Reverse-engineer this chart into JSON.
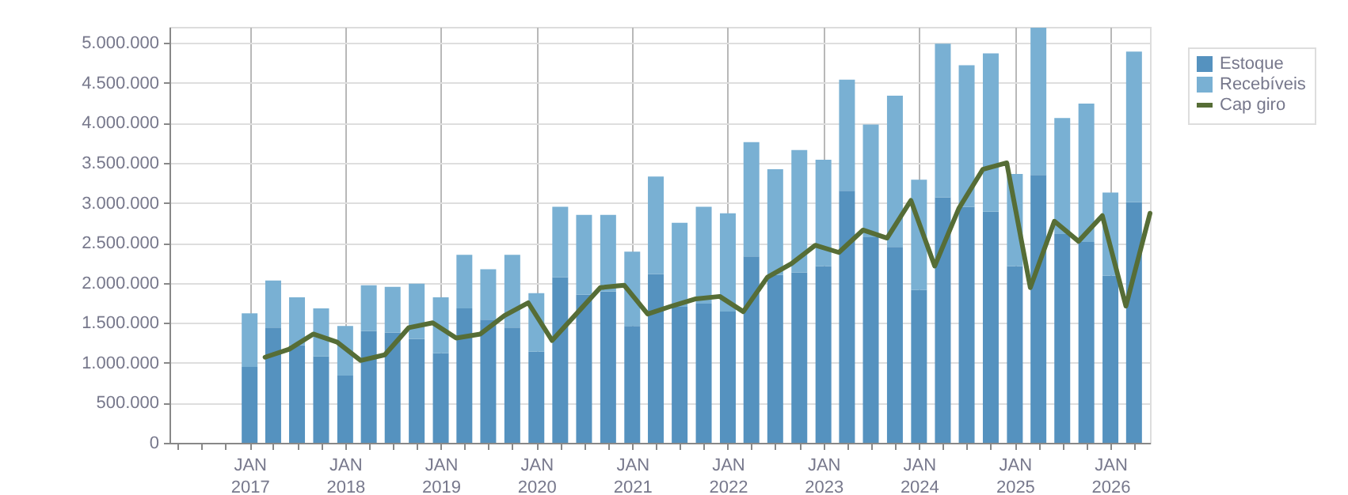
{
  "chart_data": {
    "type": "bar",
    "stacked": true,
    "x": [
      "2017-01",
      "2017-04",
      "2017-07",
      "2017-10",
      "2018-01",
      "2018-04",
      "2018-07",
      "2018-10",
      "2019-01",
      "2019-04",
      "2019-07",
      "2019-10",
      "2020-01",
      "2020-04",
      "2020-07",
      "2020-10",
      "2021-01",
      "2021-04",
      "2021-07",
      "2021-10",
      "2022-01",
      "2022-04",
      "2022-07",
      "2022-10",
      "2023-01",
      "2023-04",
      "2023-07",
      "2023-10",
      "2024-01",
      "2024-04",
      "2024-07",
      "2024-10",
      "2025-01",
      "2025-04",
      "2025-07",
      "2025-10",
      "2026-01",
      "2026-04"
    ],
    "series": [
      {
        "name": "Estoque",
        "color": "#5592bf",
        "values": [
          950000,
          1440000,
          1220000,
          1080000,
          840000,
          1400000,
          1380000,
          1300000,
          1120000,
          1680000,
          1540000,
          1440000,
          1140000,
          2070000,
          1850000,
          1890000,
          1460000,
          2110000,
          1700000,
          1740000,
          1640000,
          2330000,
          2100000,
          2130000,
          2210000,
          3150000,
          2570000,
          2450000,
          1910000,
          3070000,
          2950000,
          2890000,
          2210000,
          3350000,
          2610000,
          2510000,
          2090000,
          3010000
        ]
      },
      {
        "name": "Recebíveis",
        "color": "#79b0d3",
        "values": [
          670000,
          590000,
          600000,
          600000,
          620000,
          570000,
          570000,
          690000,
          700000,
          670000,
          630000,
          910000,
          730000,
          880000,
          1000000,
          960000,
          930000,
          1220000,
          1050000,
          1210000,
          1230000,
          1430000,
          1320000,
          1530000,
          1330000,
          1390000,
          1410000,
          1890000,
          1380000,
          1920000,
          1770000,
          1980000,
          1150000,
          1840000,
          1450000,
          1730000,
          1040000,
          1880000
        ]
      },
      {
        "name": "Cap giro",
        "type": "line",
        "color": "#566d36",
        "x": [
          "2017-03",
          "2017-06",
          "2017-09",
          "2017-12",
          "2018-03",
          "2018-06",
          "2018-09",
          "2018-12",
          "2019-03",
          "2019-06",
          "2019-09",
          "2019-12",
          "2020-03",
          "2020-06",
          "2020-09",
          "2020-12",
          "2021-03",
          "2021-06",
          "2021-09",
          "2021-12",
          "2022-03",
          "2022-06",
          "2022-09",
          "2022-12",
          "2023-03",
          "2023-06",
          "2023-09",
          "2023-12",
          "2024-03",
          "2024-06",
          "2024-09",
          "2024-12",
          "2025-03",
          "2025-06",
          "2025-09",
          "2025-12",
          "2026-03",
          "2026-06"
        ],
        "values": [
          1070000,
          1170000,
          1360000,
          1260000,
          1030000,
          1100000,
          1440000,
          1500000,
          1310000,
          1360000,
          1590000,
          1750000,
          1280000,
          1610000,
          1940000,
          1970000,
          1610000,
          1710000,
          1800000,
          1830000,
          1640000,
          2070000,
          2240000,
          2470000,
          2380000,
          2660000,
          2560000,
          3030000,
          2210000,
          2930000,
          3420000,
          3500000,
          1940000,
          2770000,
          2520000,
          2840000,
          1710000,
          2870000
        ]
      }
    ],
    "xlim": [
      "2016-03",
      "2026-06"
    ],
    "xticks": [
      {
        "value": "2016-04",
        "label": null
      },
      {
        "value": "2016-07",
        "label": null
      },
      {
        "value": "2016-10",
        "label": null
      },
      {
        "value": "2017-01",
        "label": "JAN 2017"
      },
      {
        "value": "2017-04",
        "label": null
      },
      {
        "value": "2017-07",
        "label": null
      },
      {
        "value": "2017-10",
        "label": null
      },
      {
        "value": "2018-01",
        "label": "JAN 2018"
      },
      {
        "value": "2018-04",
        "label": null
      },
      {
        "value": "2018-07",
        "label": null
      },
      {
        "value": "2018-10",
        "label": null
      },
      {
        "value": "2019-01",
        "label": "JAN 2019"
      },
      {
        "value": "2019-04",
        "label": null
      },
      {
        "value": "2019-07",
        "label": null
      },
      {
        "value": "2019-10",
        "label": null
      },
      {
        "value": "2020-01",
        "label": "JAN 2020"
      },
      {
        "value": "2020-04",
        "label": null
      },
      {
        "value": "2020-07",
        "label": null
      },
      {
        "value": "2020-10",
        "label": null
      },
      {
        "value": "2021-01",
        "label": "JAN 2021"
      },
      {
        "value": "2021-04",
        "label": null
      },
      {
        "value": "2021-07",
        "label": null
      },
      {
        "value": "2021-10",
        "label": null
      },
      {
        "value": "2022-01",
        "label": "JAN 2022"
      },
      {
        "value": "2022-04",
        "label": null
      },
      {
        "value": "2022-07",
        "label": null
      },
      {
        "value": "2022-10",
        "label": null
      },
      {
        "value": "2023-01",
        "label": "JAN 2023"
      },
      {
        "value": "2023-04",
        "label": null
      },
      {
        "value": "2023-07",
        "label": null
      },
      {
        "value": "2023-10",
        "label": null
      },
      {
        "value": "2024-01",
        "label": "JAN 2024"
      },
      {
        "value": "2024-04",
        "label": null
      },
      {
        "value": "2024-07",
        "label": null
      },
      {
        "value": "2024-10",
        "label": null
      },
      {
        "value": "2025-01",
        "label": "JAN 2025"
      },
      {
        "value": "2025-04",
        "label": null
      },
      {
        "value": "2025-07",
        "label": null
      },
      {
        "value": "2025-10",
        "label": null
      },
      {
        "value": "2026-01",
        "label": "JAN 2026"
      },
      {
        "value": "2026-04",
        "label": null
      }
    ],
    "ylim": [
      0,
      5200000
    ],
    "yticks": [
      0,
      {
        "value": 500000,
        "label": "500.000"
      },
      {
        "value": 1000000,
        "label": "1.000.000"
      },
      {
        "value": 1500000,
        "label": "1.500.000"
      },
      {
        "value": 2000000,
        "label": "2.000.000"
      },
      {
        "value": 2500000,
        "label": "2.500.000"
      },
      {
        "value": 3000000,
        "label": "3.000.000"
      },
      {
        "value": 3500000,
        "label": "3.500.000"
      },
      {
        "value": 4000000,
        "label": "4.000.000"
      },
      {
        "value": 4500000,
        "label": "4.500.000"
      },
      {
        "value": 5000000,
        "label": "5.000.000"
      }
    ],
    "grid": true,
    "legend": "top right",
    "marker": "none",
    "line_style": "solid"
  }
}
